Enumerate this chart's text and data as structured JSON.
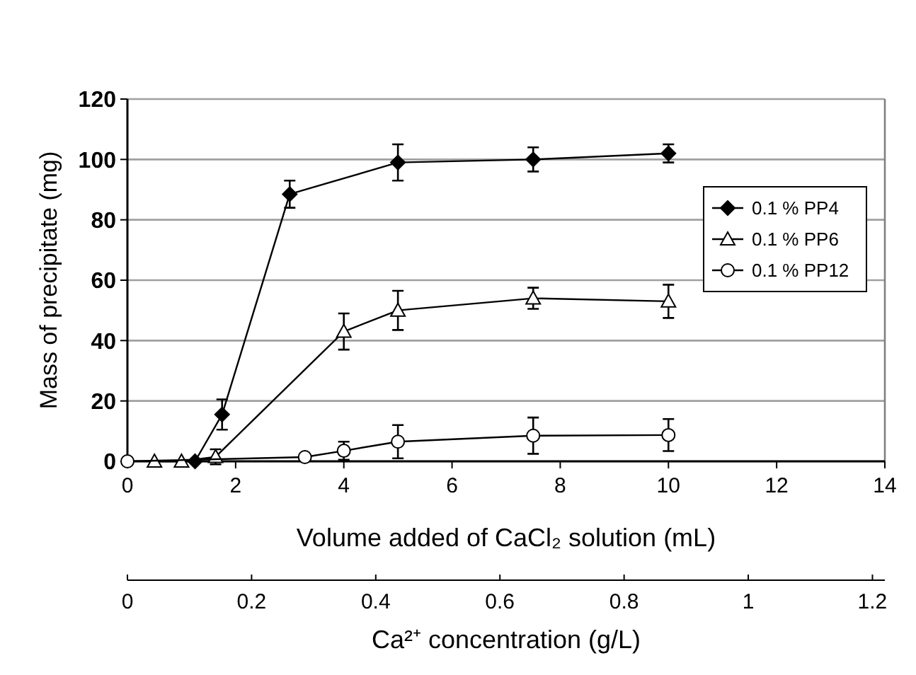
{
  "chart_data": {
    "type": "line",
    "xlabel": "Volume added of CaCl₂ solution (mL)",
    "ylabel": "Mass of precipitate (mg)",
    "x2label": "Ca²⁺ concentration (g/L)",
    "xlim": [
      0,
      14
    ],
    "xticks": [
      0,
      2,
      4,
      6,
      8,
      10,
      12,
      14
    ],
    "ylim": [
      0,
      120
    ],
    "yticks": [
      0,
      20,
      40,
      60,
      80,
      100,
      120
    ],
    "x2lim": [
      0,
      1.22
    ],
    "x2ticks": [
      0,
      0.2,
      0.4,
      0.6,
      0.8,
      1,
      1.2
    ],
    "grid": "y",
    "legend": "top right",
    "line_style": "solid",
    "series": [
      {
        "name": "0.1 % PP4",
        "color": "#000000",
        "marker": "diamond",
        "x": [
          1.25,
          1.75,
          3,
          5,
          7.5,
          10
        ],
        "values": [
          0,
          15.5,
          88.5,
          99,
          100,
          102
        ],
        "errors": [
          null,
          5,
          4.5,
          6,
          4,
          3
        ]
      },
      {
        "name": "0.1 % PP6",
        "color": "#000000",
        "marker": "triangle",
        "x": [
          0.5,
          1,
          1.63,
          4,
          5,
          7.5,
          10
        ],
        "values": [
          0,
          0,
          1.5,
          43,
          50,
          54,
          53
        ],
        "errors": [
          null,
          null,
          2.5,
          6,
          6.5,
          3.5,
          5.5
        ]
      },
      {
        "name": "0.1 % PP12",
        "color": "#000000",
        "marker": "circle",
        "x": [
          0,
          3.28,
          4,
          5,
          7.5,
          10
        ],
        "values": [
          0,
          1.4,
          3.5,
          6.5,
          8.5,
          8.7
        ],
        "errors": [
          null,
          null,
          3,
          5.5,
          6,
          5.3
        ]
      }
    ]
  }
}
